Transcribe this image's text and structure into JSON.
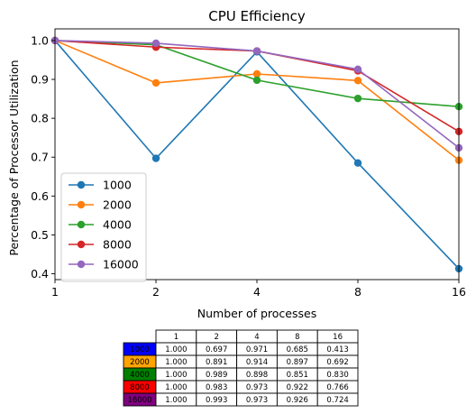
{
  "chart_data": {
    "type": "line",
    "title": "CPU Efficiency",
    "xlabel": "Number of processes",
    "ylabel": "Percentage of Processor Utilization",
    "x": [
      1,
      2,
      4,
      8,
      16
    ],
    "x_tick_labels": [
      "1",
      "2",
      "4",
      "8",
      "16"
    ],
    "x_scale": "log2",
    "xlim": [
      1,
      16
    ],
    "ylim": [
      0.385,
      1.03
    ],
    "y_ticks": [
      0.4,
      0.5,
      0.6,
      0.7,
      0.8,
      0.9,
      1.0
    ],
    "y_tick_labels": [
      "0.4",
      "0.5",
      "0.6",
      "0.7",
      "0.8",
      "0.9",
      "1.0"
    ],
    "grid": false,
    "legend_position": "lower-left",
    "series": [
      {
        "name": "1000",
        "color": "#1f77b4",
        "values": [
          1.0,
          0.697,
          0.971,
          0.685,
          0.413
        ]
      },
      {
        "name": "2000",
        "color": "#ff7f0e",
        "values": [
          1.0,
          0.891,
          0.914,
          0.897,
          0.692
        ]
      },
      {
        "name": "4000",
        "color": "#2ca02c",
        "values": [
          1.0,
          0.989,
          0.898,
          0.851,
          0.83
        ]
      },
      {
        "name": "8000",
        "color": "#d62728",
        "values": [
          1.0,
          0.983,
          0.973,
          0.922,
          0.766
        ]
      },
      {
        "name": "16000",
        "color": "#9467bd",
        "values": [
          1.0,
          0.993,
          0.973,
          0.926,
          0.724
        ]
      }
    ],
    "table": {
      "column_headers": [
        "1",
        "2",
        "4",
        "8",
        "16"
      ],
      "rows": [
        {
          "label": "1000",
          "color": "#0000ff",
          "cells": [
            "1.000",
            "0.697",
            "0.971",
            "0.685",
            "0.413"
          ]
        },
        {
          "label": "2000",
          "color": "#ffa500",
          "cells": [
            "1.000",
            "0.891",
            "0.914",
            "0.897",
            "0.692"
          ]
        },
        {
          "label": "4000",
          "color": "#008000",
          "cells": [
            "1.000",
            "0.989",
            "0.898",
            "0.851",
            "0.830"
          ]
        },
        {
          "label": "8000",
          "color": "#ff0000",
          "cells": [
            "1.000",
            "0.983",
            "0.973",
            "0.922",
            "0.766"
          ]
        },
        {
          "label": "16000",
          "color": "#800080",
          "cells": [
            "1.000",
            "0.993",
            "0.973",
            "0.926",
            "0.724"
          ]
        }
      ]
    }
  }
}
